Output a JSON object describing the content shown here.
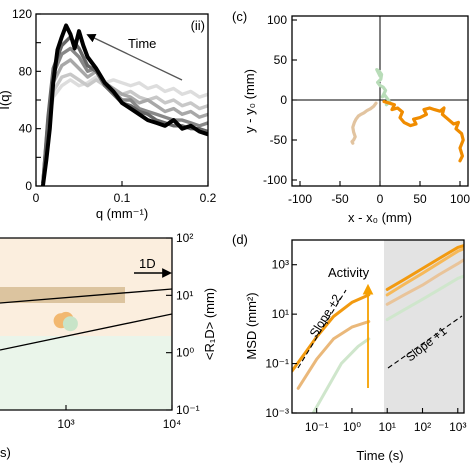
{
  "chart_data": [
    {
      "panel": "(ii)",
      "type": "line",
      "xlabel": "q (mm⁻¹)",
      "ylabel": "I(q)",
      "xlim": [
        0,
        0.2
      ],
      "ylim": [
        0,
        120
      ],
      "xticks": [
        "0",
        "0.1",
        "0.2"
      ],
      "yticks": [
        "0",
        "20",
        "40",
        "60",
        "80",
        "100",
        "120"
      ],
      "annotation": "Time",
      "series": [
        {
          "color": "#dddddd",
          "x": [
            0.008,
            0.014,
            0.02,
            0.03,
            0.04,
            0.05,
            0.06,
            0.07,
            0.08,
            0.09,
            0.1,
            0.11,
            0.12,
            0.13,
            0.14,
            0.15,
            0.16,
            0.17,
            0.18,
            0.19,
            0.2
          ],
          "y": [
            2,
            40,
            62,
            70,
            74,
            70,
            72,
            76,
            72,
            74,
            72,
            70,
            72,
            68,
            70,
            66,
            68,
            64,
            66,
            62,
            64
          ]
        },
        {
          "color": "#c8c8c8",
          "x": [
            0.008,
            0.014,
            0.02,
            0.03,
            0.04,
            0.05,
            0.06,
            0.07,
            0.08,
            0.09,
            0.1,
            0.11,
            0.12,
            0.13,
            0.14,
            0.15,
            0.16,
            0.17,
            0.18,
            0.19,
            0.2
          ],
          "y": [
            2,
            42,
            66,
            76,
            78,
            74,
            70,
            74,
            70,
            68,
            64,
            66,
            62,
            60,
            62,
            58,
            60,
            56,
            58,
            54,
            56
          ]
        },
        {
          "color": "#a8a8a8",
          "x": [
            0.008,
            0.014,
            0.02,
            0.03,
            0.04,
            0.05,
            0.06,
            0.07,
            0.08,
            0.09,
            0.1,
            0.11,
            0.12,
            0.13,
            0.14,
            0.15,
            0.16,
            0.17,
            0.18,
            0.19,
            0.2
          ],
          "y": [
            2,
            44,
            72,
            84,
            88,
            82,
            76,
            80,
            72,
            68,
            64,
            62,
            58,
            60,
            56,
            52,
            54,
            50,
            52,
            48,
            50
          ]
        },
        {
          "color": "#888888",
          "x": [
            0.008,
            0.014,
            0.02,
            0.03,
            0.04,
            0.05,
            0.06,
            0.07,
            0.08,
            0.09,
            0.1,
            0.11,
            0.12,
            0.13,
            0.14,
            0.15,
            0.16,
            0.17,
            0.18,
            0.19,
            0.2
          ],
          "y": [
            2,
            46,
            78,
            92,
            96,
            90,
            80,
            82,
            72,
            66,
            60,
            60,
            54,
            52,
            50,
            48,
            46,
            46,
            44,
            42,
            44
          ]
        },
        {
          "color": "#666666",
          "x": [
            0.008,
            0.014,
            0.02,
            0.03,
            0.04,
            0.05,
            0.06,
            0.07,
            0.08,
            0.09,
            0.1,
            0.11,
            0.12,
            0.13,
            0.14,
            0.15,
            0.16,
            0.17,
            0.18,
            0.19,
            0.2
          ],
          "y": [
            2,
            48,
            82,
            98,
            104,
            96,
            84,
            80,
            70,
            64,
            58,
            56,
            52,
            50,
            46,
            44,
            42,
            42,
            40,
            40,
            38
          ]
        },
        {
          "color": "#000000",
          "x": [
            0.008,
            0.012,
            0.016,
            0.02,
            0.025,
            0.03,
            0.035,
            0.04,
            0.045,
            0.05,
            0.055,
            0.06,
            0.07,
            0.08,
            0.09,
            0.1,
            0.11,
            0.12,
            0.13,
            0.14,
            0.15,
            0.16,
            0.17,
            0.18,
            0.19,
            0.2
          ],
          "y": [
            0,
            18,
            40,
            72,
            95,
            104,
            112,
            106,
            96,
            108,
            98,
            90,
            82,
            72,
            66,
            58,
            54,
            50,
            46,
            44,
            42,
            46,
            40,
            42,
            38,
            36
          ]
        }
      ]
    },
    {
      "panel": "(c)",
      "type": "line",
      "xlabel": "x - x₀ (mm)",
      "ylabel": "y - y₀ (mm)",
      "xlim": [
        -110,
        110
      ],
      "ylim": [
        -110,
        110
      ],
      "xticks": [
        "-100",
        "-50",
        "0",
        "50",
        "100"
      ],
      "yticks": [
        "-100",
        "-50",
        "0",
        "50",
        "100"
      ],
      "series": [
        {
          "color": "#b8dcb8",
          "x": [
            0,
            -2,
            -4,
            -1,
            2,
            1,
            -3,
            0,
            4,
            7,
            5,
            3,
            6,
            9,
            12,
            10,
            8
          ],
          "y": [
            30,
            34,
            38,
            36,
            32,
            26,
            22,
            18,
            16,
            12,
            8,
            4,
            6,
            2,
            -2,
            -4,
            -6
          ]
        },
        {
          "color": "#e2c4a0",
          "x": [
            -5,
            -8,
            -12,
            -16,
            -20,
            -24,
            -27,
            -30,
            -32,
            -34,
            -33,
            -31,
            -33,
            -35,
            -34
          ],
          "y": [
            -4,
            -8,
            -11,
            -13,
            -16,
            -18,
            -20,
            -24,
            -28,
            -34,
            -40,
            -46,
            -50,
            -52,
            -54
          ]
        },
        {
          "color": "#f08c00",
          "x": [
            5,
            12,
            18,
            15,
            22,
            28,
            25,
            30,
            38,
            45,
            42,
            50,
            58,
            55,
            62,
            68,
            75,
            80,
            78,
            85,
            92,
            98,
            95,
            102,
            104,
            100,
            103,
            100
          ],
          "y": [
            -2,
            -4,
            -6,
            -12,
            -10,
            -15,
            -22,
            -28,
            -32,
            -30,
            -24,
            -22,
            -18,
            -12,
            -10,
            -12,
            -14,
            -10,
            -18,
            -24,
            -30,
            -28,
            -36,
            -42,
            -50,
            -60,
            -70,
            -76
          ]
        }
      ]
    },
    {
      "type": "scatter",
      "ylabel": "<R₁D> (mm)",
      "xlabel": "s)",
      "yscale": "log",
      "xscale": "log",
      "ylim": [
        0.1,
        100
      ],
      "xticks": [
        "10³",
        "10⁴"
      ],
      "yticks": [
        "10⁻¹",
        "10⁰",
        "10¹",
        "10²"
      ],
      "annotation": "1D",
      "series": [
        {
          "color": "#f2b870",
          "x": [
            28,
            900,
            1000
          ],
          "y": [
            3.4,
            3.6,
            3.8
          ]
        },
        {
          "color": "#c8e4c8",
          "x": [
            30,
            1100
          ],
          "y": [
            1.3,
            3.2
          ]
        }
      ]
    },
    {
      "panel": "(d)",
      "type": "line",
      "xlabel": "Time (s)",
      "ylabel": "MSD (mm²)",
      "xscale": "log",
      "yscale": "log",
      "xlim": [
        0.02,
        1500
      ],
      "ylim": [
        0.001,
        10000
      ],
      "xticks": [
        "10⁻¹",
        "10⁰",
        "10¹",
        "10²",
        "10³"
      ],
      "yticks": [
        "10⁻³",
        "10⁻¹",
        "10¹",
        "10³"
      ],
      "annotations": [
        "Activity",
        "Slope +2",
        "Slope +1"
      ],
      "series": [
        {
          "color": "#f29a10",
          "x": [
            0.02,
            0.05,
            0.1,
            0.3,
            1,
            3
          ],
          "y": [
            0.05,
            0.3,
            1.2,
            8,
            30,
            60
          ]
        },
        {
          "color": "#eab87a",
          "x": [
            0.03,
            0.1,
            0.3,
            1,
            3
          ],
          "y": [
            0.01,
            0.15,
            1,
            3,
            5
          ]
        },
        {
          "color": "#cfe6cc",
          "x": [
            0.08,
            0.2,
            0.5,
            1.5,
            3
          ],
          "y": [
            0.001,
            0.01,
            0.1,
            0.5,
            1
          ]
        },
        {
          "color": "#f29a10",
          "x": [
            10,
            30,
            100,
            300,
            1000,
            1500
          ],
          "y": [
            100,
            250,
            700,
            1800,
            5000,
            6000
          ]
        },
        {
          "color": "#f6b95a",
          "x": [
            10,
            30,
            100,
            300,
            1000,
            1500
          ],
          "y": [
            60,
            160,
            450,
            1200,
            3500,
            4500
          ]
        },
        {
          "color": "#e9c49a",
          "x": [
            10,
            30,
            100,
            300,
            1000,
            1500
          ],
          "y": [
            25,
            60,
            150,
            400,
            1100,
            1600
          ]
        },
        {
          "color": "#cfe6cc",
          "x": [
            10,
            30,
            100,
            300,
            1000,
            1500
          ],
          "y": [
            6,
            15,
            40,
            100,
            280,
            350
          ]
        }
      ]
    }
  ]
}
